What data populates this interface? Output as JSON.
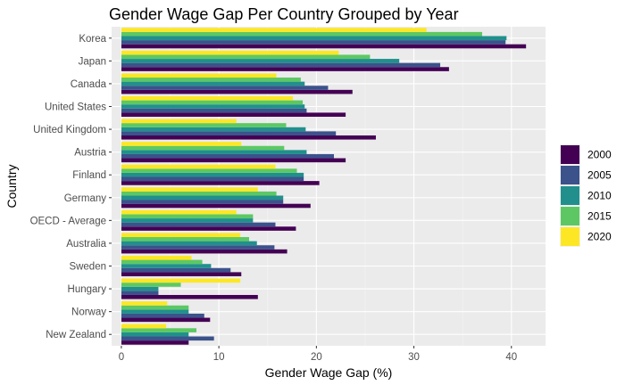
{
  "chart_data": {
    "type": "bar",
    "orientation": "horizontal",
    "title": "Gender Wage Gap Per Country Grouped by Year",
    "xlabel": "Gender Wage Gap (%)",
    "ylabel": "Country",
    "xlim": [
      -1,
      43.5
    ],
    "xticks": [
      0,
      10,
      20,
      30,
      40
    ],
    "grid": true,
    "legend_position": "right",
    "categories": [
      "Korea",
      "Japan",
      "Canada",
      "United States",
      "United Kingdom",
      "Austria",
      "Finland",
      "Germany",
      "OECD - Average",
      "Australia",
      "Sweden",
      "Hungary",
      "Norway",
      "New Zealand"
    ],
    "series": [
      {
        "name": "2000",
        "color": "#440154",
        "values": [
          41.5,
          33.6,
          23.7,
          23.0,
          26.1,
          23.0,
          20.3,
          19.4,
          17.9,
          17.0,
          12.3,
          14.0,
          9.1,
          6.9
        ]
      },
      {
        "name": "2005",
        "color": "#3B528B",
        "values": [
          39.4,
          32.7,
          21.2,
          19.0,
          22.0,
          21.8,
          18.7,
          16.6,
          15.8,
          15.7,
          11.2,
          3.8,
          8.5,
          9.5
        ]
      },
      {
        "name": "2010",
        "color": "#21908C",
        "values": [
          39.5,
          28.5,
          18.8,
          18.8,
          18.9,
          19.0,
          18.7,
          16.6,
          13.5,
          13.9,
          9.2,
          3.8,
          6.9,
          6.9
        ]
      },
      {
        "name": "2015",
        "color": "#5DC863",
        "values": [
          37.0,
          25.5,
          18.4,
          18.6,
          16.9,
          16.7,
          18.0,
          15.9,
          13.5,
          13.1,
          8.3,
          6.1,
          6.9,
          7.7
        ]
      },
      {
        "name": "2020",
        "color": "#FDE725",
        "values": [
          31.3,
          22.3,
          15.9,
          17.6,
          11.8,
          12.3,
          15.8,
          14.0,
          11.8,
          12.2,
          7.2,
          12.2,
          4.7,
          4.6
        ]
      }
    ]
  }
}
